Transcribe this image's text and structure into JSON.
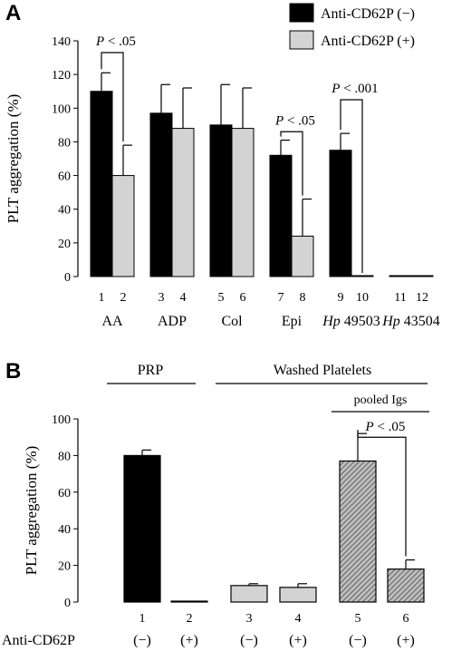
{
  "chart_data": [
    {
      "panel": "A",
      "type": "bar",
      "ylabel": "PLT aggregation (%)",
      "ylim": [
        0,
        140
      ],
      "yticks": [
        0,
        20,
        40,
        60,
        80,
        100,
        120,
        140
      ],
      "legend": {
        "placement": "top-right",
        "entries": [
          {
            "label": "Anti-CD62P (−)",
            "color": "#000000"
          },
          {
            "label": "Anti-CD62P (+)",
            "color": "#d3d3d3"
          }
        ]
      },
      "bars": [
        {
          "label": "1",
          "value": 110,
          "error": 11,
          "fill": "#000000"
        },
        {
          "label": "2",
          "value": 60,
          "error": 18,
          "fill": "#d3d3d3"
        },
        {
          "label": "3",
          "value": 97,
          "error": 17,
          "fill": "#000000"
        },
        {
          "label": "4",
          "value": 88,
          "error": 24,
          "fill": "#d3d3d3"
        },
        {
          "label": "5",
          "value": 90,
          "error": 24,
          "fill": "#000000"
        },
        {
          "label": "6",
          "value": 88,
          "error": 24,
          "fill": "#d3d3d3"
        },
        {
          "label": "7",
          "value": 72,
          "error": 9,
          "fill": "#000000"
        },
        {
          "label": "8",
          "value": 24,
          "error": 22,
          "fill": "#d3d3d3"
        },
        {
          "label": "9",
          "value": 75,
          "error": 10,
          "fill": "#000000"
        },
        {
          "label": "10",
          "value": 0,
          "error": 0,
          "fill": "#d3d3d3"
        },
        {
          "label": "11",
          "value": 0,
          "error": 0,
          "fill": "#000000"
        },
        {
          "label": "12",
          "value": 0,
          "error": 0,
          "fill": "#d3d3d3"
        }
      ],
      "groups": [
        {
          "label": "AA",
          "italic_prefix": "",
          "bars": [
            1,
            2
          ]
        },
        {
          "label": "ADP",
          "italic_prefix": "",
          "bars": [
            3,
            4
          ]
        },
        {
          "label": "Col",
          "italic_prefix": "",
          "bars": [
            5,
            6
          ]
        },
        {
          "label": "Epi",
          "italic_prefix": "",
          "bars": [
            7,
            8
          ]
        },
        {
          "label": " 49503",
          "italic_prefix": "Hp",
          "bars": [
            9,
            10
          ]
        },
        {
          "label": " 43504",
          "italic_prefix": "Hp",
          "bars": [
            11,
            12
          ]
        }
      ],
      "significance": [
        {
          "from": 1,
          "to": 2,
          "p_italic": "P",
          "p_text": " < .05",
          "level": 133
        },
        {
          "from": 7,
          "to": 8,
          "p_italic": "P",
          "p_text": " < .05",
          "level": 86
        },
        {
          "from": 9,
          "to": 10,
          "p_italic": "P",
          "p_text": " < .001",
          "level": 105
        }
      ]
    },
    {
      "panel": "B",
      "type": "bar",
      "ylabel": "PLT aggregation (%)",
      "ylim": [
        0,
        100
      ],
      "yticks": [
        0,
        20,
        40,
        60,
        80,
        100
      ],
      "bars": [
        {
          "label": "1",
          "value": 80,
          "error": 3,
          "fill": "solid-black",
          "condition": "(−)"
        },
        {
          "label": "2",
          "value": 0,
          "error": 0,
          "fill": "solid-black",
          "condition": "(+)"
        },
        {
          "label": "3",
          "value": 9,
          "error": 1,
          "fill": "light-gray",
          "condition": "(−)"
        },
        {
          "label": "4",
          "value": 8,
          "error": 2,
          "fill": "light-gray",
          "condition": "(+)"
        },
        {
          "label": "5",
          "value": 77,
          "error": 15,
          "fill": "hatched-gray",
          "condition": "(−)"
        },
        {
          "label": "6",
          "value": 18,
          "error": 5,
          "fill": "hatched-gray",
          "condition": "(+)"
        }
      ],
      "row_label": "Anti-CD62P",
      "groups": [
        {
          "label": "PRP",
          "bars": [
            1,
            2
          ]
        },
        {
          "label": "Washed Platelets",
          "bars": [
            3,
            6
          ]
        },
        {
          "label": "pooled Igs",
          "bars": [
            5,
            6
          ]
        }
      ],
      "significance": [
        {
          "from": 5,
          "to": 6,
          "p_italic": "P",
          "p_text": " < .05",
          "level": 88
        }
      ]
    }
  ],
  "panels": {
    "a_label": "A",
    "b_label": "B"
  }
}
